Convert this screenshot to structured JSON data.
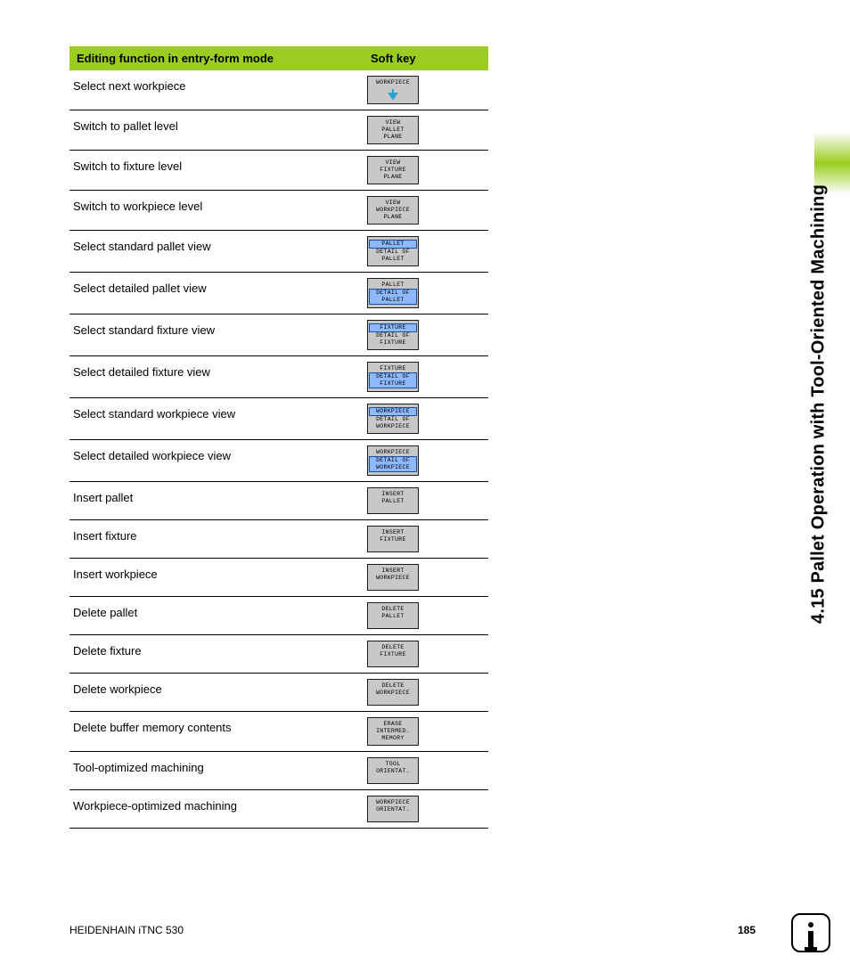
{
  "header": {
    "col_func": "Editing function in entry-form mode",
    "col_key": "Soft key"
  },
  "rows": [
    {
      "label": "Select next workpiece",
      "key": {
        "lines": [
          "WORKPIECE"
        ],
        "arrow": true
      }
    },
    {
      "label": "Switch to pallet level",
      "key": {
        "lines": [
          "VIEW",
          "PALLET",
          "PLANE"
        ]
      }
    },
    {
      "label": "Switch to fixture level",
      "key": {
        "lines": [
          "VIEW",
          "FIXTURE",
          "PLANE"
        ]
      }
    },
    {
      "label": "Switch to workpiece level",
      "key": {
        "lines": [
          "VIEW",
          "WORKPIECE",
          "PLANE"
        ]
      }
    },
    {
      "label": "Select standard pallet view",
      "key": {
        "lines": [
          "PALLET",
          "DETAIL OF",
          "PALLET"
        ],
        "highlight": [
          0
        ]
      }
    },
    {
      "label": "Select detailed pallet view",
      "key": {
        "lines": [
          "PALLET",
          "DETAIL OF",
          "PALLET"
        ],
        "highlight": [
          1,
          2
        ]
      }
    },
    {
      "label": "Select standard fixture view",
      "key": {
        "lines": [
          "FIXTURE",
          "DETAIL OF",
          "FIXTURE"
        ],
        "highlight": [
          0
        ]
      }
    },
    {
      "label": "Select detailed fixture view",
      "key": {
        "lines": [
          "FIXTURE",
          "DETAIL OF",
          "FIXTURE"
        ],
        "highlight": [
          1,
          2
        ]
      }
    },
    {
      "label": "Select standard workpiece view",
      "key": {
        "lines": [
          "WORKPIECE",
          "DETAIL OF",
          "WORKPIECE"
        ],
        "highlight": [
          0
        ]
      }
    },
    {
      "label": "Select detailed workpiece view",
      "key": {
        "lines": [
          "WORKPIECE",
          "DETAIL OF",
          "WORKPIECE"
        ],
        "highlight": [
          1,
          2
        ]
      }
    },
    {
      "label": "Insert pallet",
      "key": {
        "lines": [
          "INSERT",
          "PALLET"
        ]
      }
    },
    {
      "label": "Insert fixture",
      "key": {
        "lines": [
          "INSERT",
          "FIXTURE"
        ]
      }
    },
    {
      "label": "Insert workpiece",
      "key": {
        "lines": [
          "INSERT",
          "WORKPIECE"
        ]
      }
    },
    {
      "label": "Delete pallet",
      "key": {
        "lines": [
          "DELETE",
          "PALLET"
        ]
      }
    },
    {
      "label": "Delete fixture",
      "key": {
        "lines": [
          "DELETE",
          "FIXTURE"
        ]
      }
    },
    {
      "label": "Delete workpiece",
      "key": {
        "lines": [
          "DELETE",
          "WORKPIECE"
        ]
      }
    },
    {
      "label": "Delete buffer memory contents",
      "key": {
        "lines": [
          "ERASE",
          "INTERMED.",
          "MEMORY"
        ]
      }
    },
    {
      "label": "Tool-optimized machining",
      "key": {
        "lines": [
          "TOOL",
          "ORIENTAT."
        ]
      }
    },
    {
      "label": "Workpiece-optimized machining",
      "key": {
        "lines": [
          "WORKPIECE",
          "ORIENTAT."
        ]
      }
    }
  ],
  "side_title": "4.15 Pallet Operation with Tool-Oriented Machining",
  "footer": {
    "product": "HEIDENHAIN iTNC 530",
    "page": "185"
  },
  "colors": {
    "header_bg": "#9ACD1F",
    "softkey_bg": "#c8c8c8",
    "softkey_border": "#1a1a1a",
    "highlight_bg": "#8fb9ff",
    "highlight_border": "#1a4e9e",
    "arrow": "#2aa3d4"
  }
}
